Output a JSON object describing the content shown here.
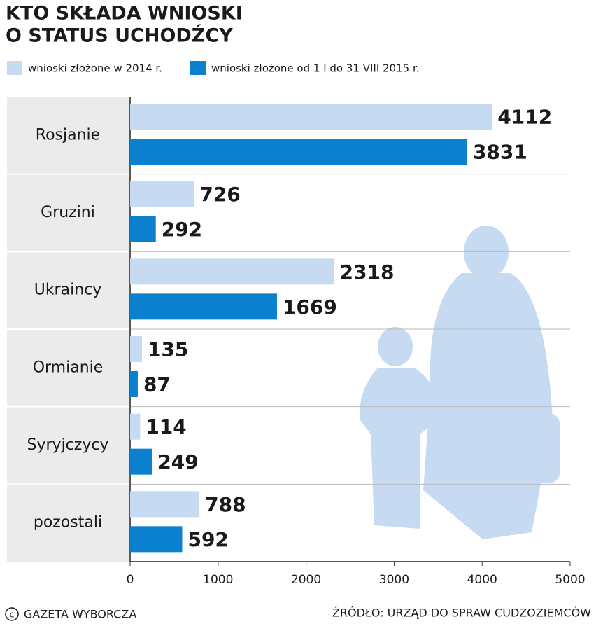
{
  "chart_data": {
    "type": "bar",
    "title": [
      "KTO SKŁADA WNIOSKI",
      "O STATUS UCHODŹCY"
    ],
    "categories": [
      "Rosjanie",
      "Gruzini",
      "Ukraincy",
      "Ormianie",
      "Syryjczycy",
      "pozostali"
    ],
    "series": [
      {
        "name": "wnioski złożone w 2014 r.",
        "color": "#c6dbf2",
        "values": [
          4112,
          726,
          2318,
          135,
          114,
          788
        ]
      },
      {
        "name": "wnioski złożone od 1 I do 31 VIII 2015 r.",
        "color": "#0b80cf",
        "values": [
          3831,
          292,
          1669,
          87,
          249,
          592
        ]
      }
    ],
    "xlim": [
      0,
      5000
    ],
    "xticks": [
      0,
      1000,
      2000,
      3000,
      4000,
      5000
    ],
    "credit": "GAZETA WYBORCZA",
    "source": "ŹRÓDŁO: URZĄD DO SPRAW CUDZOZIEMCÓW"
  }
}
